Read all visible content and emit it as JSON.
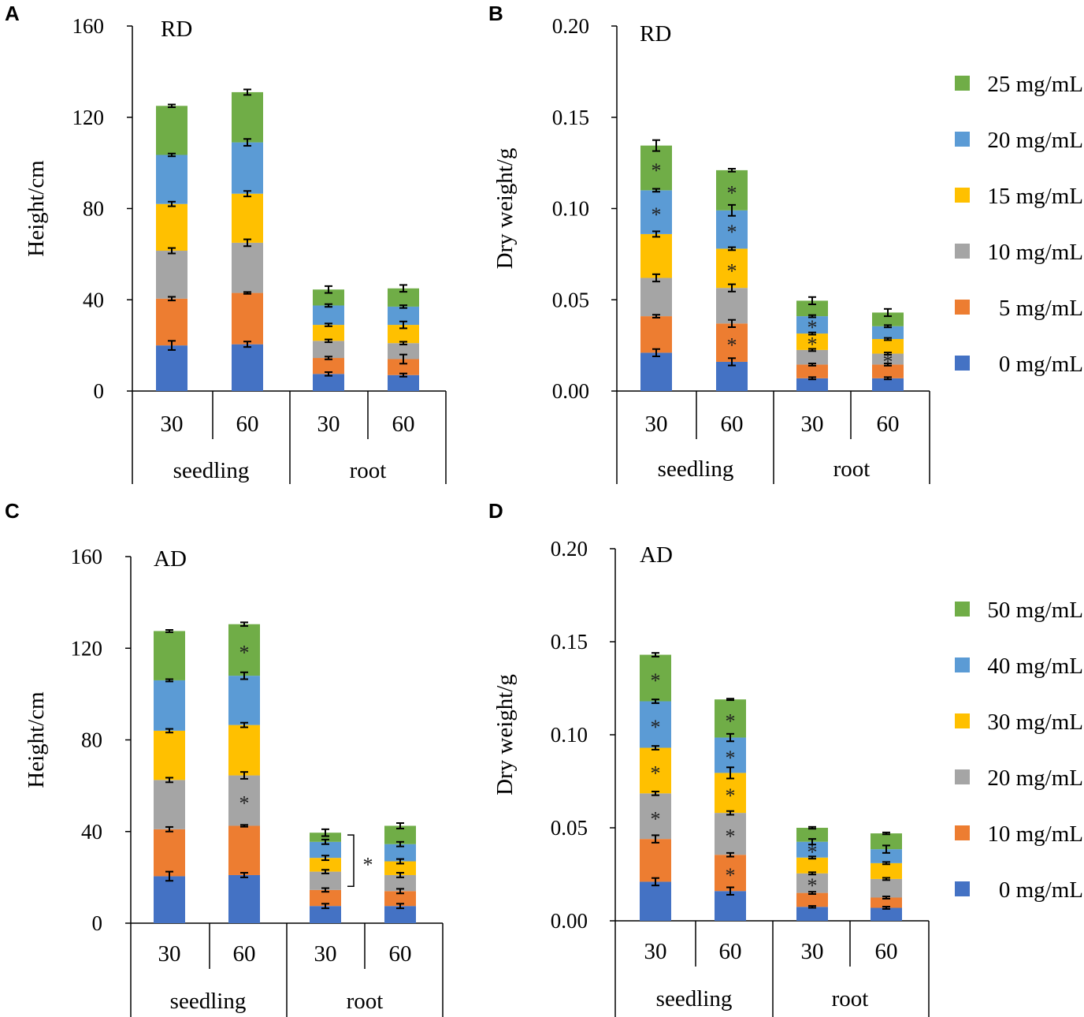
{
  "panels": [
    {
      "id": "A",
      "panel_label": "A",
      "chart_title": "RD",
      "ylabel": "Height/cm",
      "yticks": [
        "0",
        "40",
        "80",
        "120",
        "160"
      ],
      "categories": [
        "30",
        "60",
        "30",
        "60"
      ],
      "groups": [
        "seedling",
        "root"
      ],
      "legend": null
    },
    {
      "id": "B",
      "panel_label": "B",
      "chart_title": "RD",
      "ylabel": "Dry weight/g",
      "yticks": [
        "0.00",
        "0.05",
        "0.10",
        "0.15",
        "0.20"
      ],
      "categories": [
        "30",
        "60",
        "30",
        "60"
      ],
      "groups": [
        "seedling",
        "root"
      ],
      "legend": [
        "25 mg/mL",
        "20 mg/mL",
        "15 mg/mL",
        "10 mg/mL",
        " 5 mg/mL",
        " 0 mg/mL"
      ]
    },
    {
      "id": "C",
      "panel_label": "C",
      "chart_title": "AD",
      "ylabel": "Height/cm",
      "yticks": [
        "0",
        "40",
        "80",
        "120",
        "160"
      ],
      "categories": [
        "30",
        "60",
        "30",
        "60"
      ],
      "groups": [
        "seedling",
        "root"
      ],
      "legend": null
    },
    {
      "id": "D",
      "panel_label": "D",
      "chart_title": "AD",
      "ylabel": "Dry weight/g",
      "yticks": [
        "0.00",
        "0.05",
        "0.10",
        "0.15",
        "0.20"
      ],
      "categories": [
        "30",
        "60",
        "30",
        "60"
      ],
      "groups": [
        "seedling",
        "root"
      ],
      "legend": [
        "50 mg/mL",
        "40 mg/mL",
        "30 mg/mL",
        "20 mg/mL",
        "10 mg/mL",
        " 0 mg/mL"
      ]
    }
  ],
  "chart_data": [
    {
      "id": "A",
      "type": "bar",
      "stacked": true,
      "title": "RD",
      "ylabel": "Height/cm",
      "ylim": [
        0,
        160
      ],
      "categories": [
        "seedling 30",
        "seedling 60",
        "root 30",
        "root 60"
      ],
      "series": [
        {
          "name": "0 mg/mL",
          "values": [
            20,
            20.5,
            7.5,
            7
          ],
          "errors": [
            2,
            1.2,
            0.8,
            0.7
          ]
        },
        {
          "name": "5 mg/mL",
          "values": [
            20.5,
            22.5,
            7,
            7
          ],
          "errors": [
            0.8,
            0.4,
            0.6,
            2
          ]
        },
        {
          "name": "10 mg/mL",
          "values": [
            21,
            22,
            7.5,
            7
          ],
          "errors": [
            1.2,
            1.5,
            0.6,
            0.6
          ]
        },
        {
          "name": "15 mg/mL",
          "values": [
            20.5,
            21.5,
            7,
            8
          ],
          "errors": [
            1,
            1.2,
            0.6,
            1.5
          ]
        },
        {
          "name": "20 mg/mL",
          "values": [
            21.5,
            22.5,
            8.5,
            8
          ],
          "errors": [
            0.6,
            1.5,
            0.6,
            0.6
          ]
        },
        {
          "name": "25 mg/mL",
          "values": [
            21.5,
            22,
            7,
            8
          ],
          "errors": [
            0.6,
            1.2,
            1.5,
            1.5
          ]
        }
      ],
      "significance": []
    },
    {
      "id": "B",
      "type": "bar",
      "stacked": true,
      "title": "RD",
      "ylabel": "Dry weight/g",
      "ylim": [
        0,
        0.2
      ],
      "categories": [
        "seedling 30",
        "seedling 60",
        "root 30",
        "root 60"
      ],
      "series": [
        {
          "name": "0 mg/mL",
          "values": [
            0.021,
            0.016,
            0.007,
            0.007
          ],
          "errors": [
            0.002,
            0.002,
            0.0006,
            0.0006
          ]
        },
        {
          "name": "5 mg/mL",
          "values": [
            0.02,
            0.021,
            0.0075,
            0.0075
          ],
          "errors": [
            0.0008,
            0.002,
            0.0006,
            0.0006
          ]
        },
        {
          "name": "10 mg/mL",
          "values": [
            0.021,
            0.0195,
            0.008,
            0.006
          ],
          "errors": [
            0.002,
            0.002,
            0.0006,
            0.0006
          ]
        },
        {
          "name": "15 mg/mL",
          "values": [
            0.024,
            0.0215,
            0.009,
            0.008
          ],
          "errors": [
            0.0015,
            0.0008,
            0.0006,
            0.0006
          ]
        },
        {
          "name": "20 mg/mL",
          "values": [
            0.024,
            0.021,
            0.0095,
            0.007
          ],
          "errors": [
            0.0008,
            0.003,
            0.0006,
            0.0006
          ]
        },
        {
          "name": "25 mg/mL",
          "values": [
            0.0245,
            0.022,
            0.0085,
            0.0075
          ],
          "errors": [
            0.003,
            0.0008,
            0.002,
            0.002
          ]
        }
      ],
      "significance": [
        {
          "category": "seedling 30",
          "series": "25 mg/mL",
          "mark": "*"
        },
        {
          "category": "seedling 30",
          "series": "20 mg/mL",
          "mark": "*"
        },
        {
          "category": "seedling 60",
          "series": "25 mg/mL",
          "mark": "*"
        },
        {
          "category": "seedling 60",
          "series": "20 mg/mL",
          "mark": "*"
        },
        {
          "category": "seedling 60",
          "series": "15 mg/mL",
          "mark": "*"
        },
        {
          "category": "seedling 60",
          "series": "5 mg/mL",
          "mark": "*"
        },
        {
          "category": "root 30",
          "series": "20 mg/mL",
          "mark": "*"
        },
        {
          "category": "root 30",
          "series": "15 mg/mL",
          "mark": "*"
        },
        {
          "category": "root 60",
          "series": "10 mg/mL",
          "mark": "*"
        }
      ]
    },
    {
      "id": "C",
      "type": "bar",
      "stacked": true,
      "title": "AD",
      "ylabel": "Height/cm",
      "ylim": [
        0,
        160
      ],
      "categories": [
        "seedling 30",
        "seedling 60",
        "root 30",
        "root 60"
      ],
      "series": [
        {
          "name": "0 mg/mL",
          "values": [
            20.5,
            21,
            7.5,
            7.5
          ],
          "errors": [
            2,
            1,
            1,
            1
          ]
        },
        {
          "name": "10 mg/mL",
          "values": [
            20.5,
            21.5,
            7,
            6.5
          ],
          "errors": [
            1,
            0.4,
            0.8,
            1
          ]
        },
        {
          "name": "20 mg/mL",
          "values": [
            21.5,
            22,
            8,
            7
          ],
          "errors": [
            1,
            1.5,
            0.8,
            1
          ]
        },
        {
          "name": "30 mg/mL",
          "values": [
            21.5,
            22,
            6,
            6
          ],
          "errors": [
            0.8,
            1,
            1,
            1
          ]
        },
        {
          "name": "40 mg/mL",
          "values": [
            22,
            21.5,
            7,
            7.5
          ],
          "errors": [
            0.5,
            1.5,
            1,
            1
          ]
        },
        {
          "name": "50 mg/mL",
          "values": [
            21.5,
            22.5,
            4,
            8
          ],
          "errors": [
            0.5,
            0.8,
            1.5,
            1.2
          ]
        }
      ],
      "significance": [
        {
          "category": "seedling 60",
          "series": "50 mg/mL",
          "mark": "*"
        },
        {
          "category": "seedling 60",
          "series": "20 mg/mL",
          "mark": "*"
        },
        {
          "category": "root 30",
          "series": "20-50 mg/mL",
          "mark": "*"
        }
      ]
    },
    {
      "id": "D",
      "type": "bar",
      "stacked": true,
      "title": "AD",
      "ylabel": "Dry weight/g",
      "ylim": [
        0,
        0.2
      ],
      "categories": [
        "seedling 30",
        "seedling 60",
        "root 30",
        "root 60"
      ],
      "series": [
        {
          "name": "0 mg/mL",
          "values": [
            0.021,
            0.016,
            0.0075,
            0.007
          ],
          "errors": [
            0.002,
            0.002,
            0.0005,
            0.0006
          ]
        },
        {
          "name": "10 mg/mL",
          "values": [
            0.023,
            0.0195,
            0.0075,
            0.0055
          ],
          "errors": [
            0.002,
            0.001,
            0.0006,
            0.0006
          ]
        },
        {
          "name": "20 mg/mL",
          "values": [
            0.0245,
            0.0225,
            0.0105,
            0.01
          ],
          "errors": [
            0.001,
            0.001,
            0.0006,
            0.0006
          ]
        },
        {
          "name": "30 mg/mL",
          "values": [
            0.0245,
            0.0215,
            0.0085,
            0.0085
          ],
          "errors": [
            0.001,
            0.003,
            0.0006,
            0.0006
          ]
        },
        {
          "name": "40 mg/mL",
          "values": [
            0.025,
            0.019,
            0.0085,
            0.0075
          ],
          "errors": [
            0.001,
            0.002,
            0.0015,
            0.002
          ]
        },
        {
          "name": "50 mg/mL",
          "values": [
            0.025,
            0.0205,
            0.0075,
            0.0085
          ],
          "errors": [
            0.001,
            0.0004,
            0.0005,
            0.0005
          ]
        }
      ],
      "significance": [
        {
          "category": "seedling 30",
          "series": "50 mg/mL",
          "mark": "*"
        },
        {
          "category": "seedling 30",
          "series": "40 mg/mL",
          "mark": "*"
        },
        {
          "category": "seedling 30",
          "series": "30 mg/mL",
          "mark": "*"
        },
        {
          "category": "seedling 30",
          "series": "20 mg/mL",
          "mark": "*"
        },
        {
          "category": "seedling 60",
          "series": "50 mg/mL",
          "mark": "*"
        },
        {
          "category": "seedling 60",
          "series": "40 mg/mL",
          "mark": "*"
        },
        {
          "category": "seedling 60",
          "series": "30 mg/mL",
          "mark": "*"
        },
        {
          "category": "seedling 60",
          "series": "20 mg/mL",
          "mark": "*"
        },
        {
          "category": "seedling 60",
          "series": "10 mg/mL",
          "mark": "*"
        },
        {
          "category": "root 30",
          "series": "40 mg/mL",
          "mark": "*"
        },
        {
          "category": "root 30",
          "series": "20 mg/mL",
          "mark": "*"
        }
      ]
    }
  ],
  "colors": {
    "series": [
      "#4472C4",
      "#ED7D31",
      "#A5A5A5",
      "#FFC000",
      "#5B9BD5",
      "#70AD47"
    ],
    "axis": "#000000",
    "error": "#000000"
  }
}
